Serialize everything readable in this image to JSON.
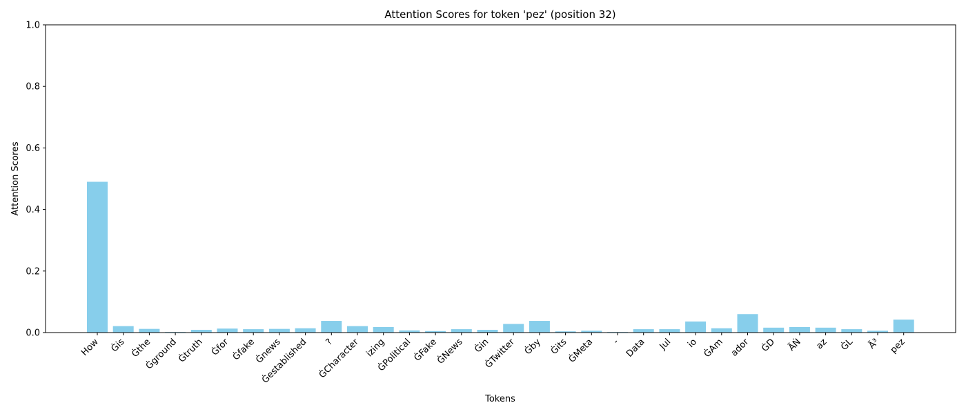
{
  "chart_data": {
    "type": "bar",
    "title": "Attention Scores for token 'pez' (position 32)",
    "xlabel": "Tokens",
    "ylabel": "Attention Scores",
    "ylim": [
      0,
      1
    ],
    "yticks": [
      "0.0",
      "0.2",
      "0.4",
      "0.6",
      "0.8",
      "1.0"
    ],
    "bar_color": "#87ceeb",
    "grid": false,
    "categories": [
      "How",
      "Ġis",
      "Ġthe",
      "Ġground",
      "Ġtruth",
      "Ġfor",
      "Ġfake",
      "Ġnews",
      "Ġestablished",
      "?",
      "ĠCharacter",
      "izing",
      "ĠPolitical",
      "ĠFake",
      "ĠNews",
      "Ġin",
      "ĠTwitter",
      "Ġby",
      "Ġits",
      "ĠMeta",
      "-",
      "Data",
      "Jul",
      "io",
      "ĠAm",
      "ador",
      "ĠD",
      "ÃŃ",
      "az",
      "ĠL",
      "Ã³",
      "pez"
    ],
    "values": [
      0.49,
      0.021,
      0.012,
      0.002,
      0.009,
      0.013,
      0.011,
      0.012,
      0.014,
      0.038,
      0.021,
      0.018,
      0.007,
      0.005,
      0.011,
      0.009,
      0.028,
      0.038,
      0.004,
      0.006,
      0.002,
      0.011,
      0.011,
      0.036,
      0.014,
      0.06,
      0.016,
      0.018,
      0.016,
      0.011,
      0.006,
      0.042
    ]
  }
}
